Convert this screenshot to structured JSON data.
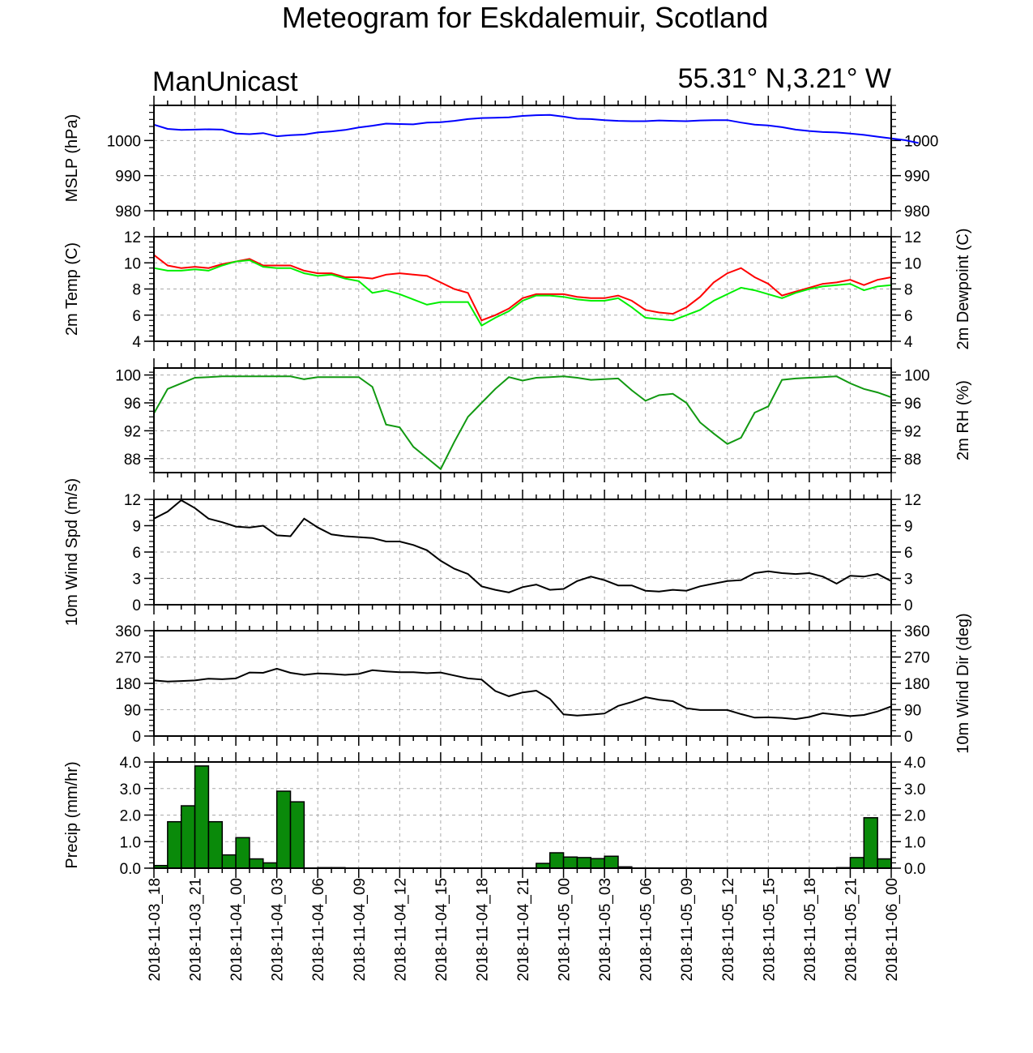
{
  "page": {
    "title": "Meteogram for Eskdalemuir, Scotland",
    "model_label": "ManUnicast",
    "coords_label": "55.31° N,3.21° W"
  },
  "colors": {
    "mslp": "#0000ff",
    "temperature": "#ff0000",
    "dewpoint": "#00ee00",
    "rh": "#119911",
    "wind_speed": "#000000",
    "wind_dir": "#000000",
    "precip_fill": "#0a8a0a",
    "grid": "#aaaaaa"
  },
  "chart_data": [
    {
      "type": "line",
      "panel": "mslp",
      "ylabel": "MSLP (hPa)",
      "ylim": [
        980,
        1010
      ],
      "yticks": [
        980,
        990,
        1000
      ],
      "ytick_labels": [
        "980",
        "990",
        "1000"
      ],
      "series": [
        {
          "values": [
            1004.5,
            1003.3,
            1003,
            1003.1,
            1003.2,
            1003.1,
            1002,
            1001.8,
            1002.1,
            1001.2,
            1001.5,
            1001.7,
            1002.3,
            1002.6,
            1003,
            1003.7,
            1004.2,
            1004.8,
            1004.7,
            1004.6,
            1005.1,
            1005.2,
            1005.6,
            1006.1,
            1006.4,
            1006.5,
            1006.6,
            1007,
            1007.2,
            1007.3,
            1006.8,
            1006.2,
            1006.1,
            1005.8,
            1005.6,
            1005.5,
            1005.5,
            1005.7,
            1005.6,
            1005.5,
            1005.7,
            1005.8,
            1005.8,
            1005.1,
            1004.5,
            1004.3,
            1003.8,
            1003.1,
            1002.7,
            1002.4,
            1002.3,
            1002,
            1001.6,
            1001.1,
            1000.6,
            1000.1,
            999.3
          ]
        }
      ]
    },
    {
      "type": "line",
      "panel": "temperature",
      "ylabel": "2m Temp (C)",
      "ylabel_right": "2m Dewpoint (C)",
      "ylim": [
        4,
        12
      ],
      "yticks": [
        4,
        6,
        8,
        10,
        12
      ],
      "ytick_labels": [
        "4",
        "6",
        "8",
        "10",
        "12"
      ],
      "series": [
        {
          "values": [
            10.6,
            9.8,
            9.6,
            9.7,
            9.6,
            9.9,
            10.1,
            10.3,
            9.8,
            9.8,
            9.8,
            9.4,
            9.2,
            9.2,
            8.9,
            8.9,
            8.8,
            9.1,
            9.2,
            9.1,
            9,
            8.5,
            8,
            7.7,
            5.6,
            6,
            6.5,
            7.3,
            7.6,
            7.6,
            7.6,
            7.4,
            7.3,
            7.3,
            7.5,
            7.1,
            6.4,
            6.2,
            6.1,
            6.6,
            7.4,
            8.5,
            9.2,
            9.6,
            8.9,
            8.4,
            7.5,
            7.8,
            8.1,
            8.4,
            8.5,
            8.7,
            8.3,
            8.7,
            8.9
          ]
        },
        {
          "values": [
            9.6,
            9.4,
            9.4,
            9.5,
            9.4,
            9.8,
            10.1,
            10.2,
            9.7,
            9.6,
            9.6,
            9.2,
            9,
            9.1,
            8.8,
            8.6,
            7.7,
            7.9,
            7.6,
            7.2,
            6.8,
            7,
            7,
            7,
            5.2,
            5.8,
            6.3,
            7.1,
            7.5,
            7.5,
            7.4,
            7.2,
            7.1,
            7.1,
            7.3,
            6.6,
            5.8,
            5.7,
            5.6,
            6,
            6.4,
            7.1,
            7.6,
            8.1,
            7.9,
            7.6,
            7.3,
            7.7,
            8,
            8.2,
            8.3,
            8.4,
            7.9,
            8.2,
            8.3
          ]
        }
      ]
    },
    {
      "type": "line",
      "panel": "rh",
      "ylabel_right": "2m RH (%)",
      "ylim": [
        86,
        101
      ],
      "yticks": [
        88,
        92,
        96,
        100
      ],
      "ytick_labels": [
        "88",
        "92",
        "96",
        "100"
      ],
      "series": [
        {
          "values": [
            94.5,
            98,
            98.8,
            99.6,
            99.7,
            99.8,
            99.8,
            99.8,
            99.8,
            99.8,
            99.8,
            99.4,
            99.7,
            99.7,
            99.7,
            99.7,
            98.3,
            92.9,
            92.5,
            89.7,
            88.1,
            86.5,
            90.4,
            94,
            96,
            98,
            99.7,
            99.2,
            99.6,
            99.7,
            99.8,
            99.6,
            99.3,
            99.4,
            99.5,
            97.8,
            96.3,
            97.1,
            97.3,
            96,
            93.2,
            91.6,
            90.1,
            91,
            94.6,
            95.5,
            99.3,
            99.5,
            99.6,
            99.7,
            99.8,
            98.8,
            98,
            97.5,
            96.8
          ]
        }
      ]
    },
    {
      "type": "line",
      "panel": "wind_speed",
      "ylabel": "10m Wind Spd (m/s)",
      "ylim": [
        0,
        12
      ],
      "yticks": [
        0,
        3,
        6,
        9,
        12
      ],
      "ytick_labels": [
        "0",
        "3",
        "6",
        "9",
        "12"
      ],
      "series": [
        {
          "values": [
            9.8,
            10.6,
            11.9,
            11,
            9.8,
            9.4,
            8.9,
            8.8,
            9,
            7.9,
            7.8,
            9.8,
            8.8,
            8,
            7.8,
            7.7,
            7.6,
            7.2,
            7.2,
            6.8,
            6.2,
            5,
            4.1,
            3.5,
            2.1,
            1.7,
            1.4,
            2,
            2.3,
            1.7,
            1.8,
            2.7,
            3.2,
            2.8,
            2.2,
            2.2,
            1.6,
            1.5,
            1.7,
            1.6,
            2.1,
            2.4,
            2.7,
            2.8,
            3.6,
            3.8,
            3.6,
            3.5,
            3.6,
            3.2,
            2.4,
            3.3,
            3.2,
            3.5,
            2.7
          ]
        }
      ]
    },
    {
      "type": "line",
      "panel": "wind_dir",
      "ylabel_right": "10m Wind Dir (deg)",
      "ylim": [
        0,
        360
      ],
      "yticks": [
        0,
        90,
        180,
        270,
        360
      ],
      "ytick_labels": [
        "0",
        "90",
        "180",
        "270",
        "360"
      ],
      "series": [
        {
          "values": [
            190,
            186,
            188,
            190,
            196,
            194,
            197,
            217,
            216,
            230,
            216,
            209,
            214,
            212,
            209,
            212,
            225,
            221,
            218,
            218,
            215,
            217,
            207,
            197,
            193,
            154,
            136,
            149,
            155,
            127,
            74,
            70,
            73,
            77,
            103,
            116,
            133,
            124,
            119,
            95,
            89,
            89,
            89,
            75,
            63,
            64,
            62,
            58,
            65,
            78,
            73,
            68,
            72,
            84,
            101
          ]
        }
      ]
    },
    {
      "type": "bar",
      "panel": "precip",
      "ylabel": "Precip (mm/hr)",
      "ylim": [
        0,
        4
      ],
      "yticks": [
        0,
        1,
        2,
        3,
        4
      ],
      "ytick_labels": [
        "0.0",
        "1.0",
        "2.0",
        "3.0",
        "4.0"
      ],
      "values": [
        0.1,
        1.75,
        2.35,
        3.85,
        1.75,
        0.5,
        1.15,
        0.35,
        0.2,
        2.9,
        2.5,
        0,
        0.02,
        0.02,
        0,
        0,
        0,
        0,
        0,
        0,
        0,
        0,
        0,
        0,
        0,
        0,
        0,
        0,
        0.18,
        0.58,
        0.42,
        0.4,
        0.36,
        0.45,
        0.05,
        0,
        0,
        0,
        0,
        0,
        0,
        0,
        0,
        0,
        0,
        0,
        0,
        0,
        0,
        0,
        0.02,
        0.4,
        1.9,
        0.35
      ]
    }
  ],
  "x_axis": {
    "labels": [
      "2018-11-03_18",
      "2018-11-03_21",
      "2018-11-04_00",
      "2018-11-04_03",
      "2018-11-04_06",
      "2018-11-04_09",
      "2018-11-04_12",
      "2018-11-04_15",
      "2018-11-04_18",
      "2018-11-04_21",
      "2018-11-05_00",
      "2018-11-05_03",
      "2018-11-05_06",
      "2018-11-05_09",
      "2018-11-05_12",
      "2018-11-05_15",
      "2018-11-05_18",
      "2018-11-05_21",
      "2018-11-06_00"
    ]
  }
}
